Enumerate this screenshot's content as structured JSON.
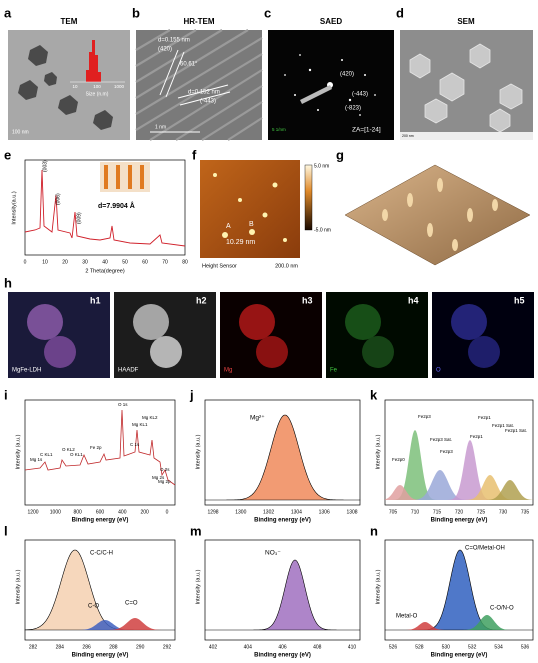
{
  "a": {
    "label": "a",
    "title": "TEM",
    "inset_xlabel": "Size (n.m)",
    "inset_ticks": [
      "10",
      "100",
      "1000"
    ],
    "scale": "100 nm"
  },
  "b": {
    "label": "b",
    "title": "HR-TEM",
    "d1": "d=0.155 nm",
    "p1": "(420)",
    "angle": "60.61°",
    "d2": "d=0.152 nm",
    "p2": "(-443)",
    "scale": "1 nm"
  },
  "c": {
    "label": "c",
    "title": "SAED",
    "p1": "(420)",
    "p2": "(-443)",
    "p3": "(-823)",
    "za": "ZA=[1-24]",
    "scale": "5 1/nm"
  },
  "d": {
    "label": "d",
    "title": "SEM",
    "scale": "200 nm"
  },
  "e": {
    "label": "e",
    "ylabel": "Intensity(a.u.)",
    "xlabel": "2 Theta(degree)",
    "xticks": [
      "0",
      "10",
      "20",
      "30",
      "40",
      "50",
      "60",
      "70",
      "80"
    ],
    "p1": "(003)",
    "p2": "(006)",
    "p3": "(009)",
    "d": "d=7.9904 Å"
  },
  "f": {
    "label": "f",
    "a": "A",
    "b": "B",
    "height": "10.29 nm",
    "sensor": "Height Sensor",
    "scale": "200.0 nm",
    "cmax": "5.0 nm",
    "cmin": "-5.0 nm"
  },
  "g": {
    "label": "g"
  },
  "h": {
    "label": "h",
    "panels": [
      {
        "label": "h1",
        "name": "MgFe-LDH"
      },
      {
        "label": "h2",
        "name": "HAADF"
      },
      {
        "label": "h3",
        "name": "Mg"
      },
      {
        "label": "h4",
        "name": "Fe"
      },
      {
        "label": "h5",
        "name": "O"
      }
    ]
  },
  "i": {
    "label": "i",
    "ylabel": "Intensity (a.u.)",
    "xlabel": "Binding energy (eV)",
    "xticks": [
      "1200",
      "1000",
      "800",
      "600",
      "400",
      "200",
      "0"
    ],
    "peaks": [
      "O 1s",
      "Mg KL1",
      "Mg KL2",
      "C 1s",
      "Fe 2p",
      "O KL1",
      "O KL2",
      "C KL1",
      "Mg 1s",
      "O 2s",
      "Mg 2s",
      "Mg 2p"
    ]
  },
  "j": {
    "label": "j",
    "ylabel": "Intensity (a.u.)",
    "xlabel": "Binding energy (eV)",
    "xticks": [
      "1298",
      "1300",
      "1302",
      "1304",
      "1306",
      "1308"
    ],
    "peak": "Mg²⁺"
  },
  "k": {
    "label": "k",
    "ylabel": "Intensity (a.u.)",
    "xlabel": "Binding energy (eV)",
    "xticks": [
      "705",
      "710",
      "715",
      "720",
      "725",
      "730",
      "735"
    ],
    "peaks": [
      "Fe2p3",
      "Fe2p3 Sat.",
      "Fe2p3",
      "Fe2p1",
      "Fe2p1",
      "Fe2p1 Sat.",
      "Fe2p1 Sat.",
      "Fe2p0"
    ]
  },
  "l": {
    "label": "l",
    "ylabel": "Intensity (a.u.)",
    "xlabel": "Binding energy (eV)",
    "xticks": [
      "282",
      "284",
      "286",
      "288",
      "290",
      "292"
    ],
    "peaks": [
      "C-C/C-H",
      "C-O",
      "C=O"
    ]
  },
  "m": {
    "label": "m",
    "ylabel": "Intensity (a.u.)",
    "xlabel": "Binding energy (eV)",
    "xticks": [
      "402",
      "404",
      "406",
      "408",
      "410"
    ],
    "peak": "NO₃⁻"
  },
  "n": {
    "label": "n",
    "ylabel": "Intensity (a.u.)",
    "xlabel": "Binding energy (eV)",
    "xticks": [
      "526",
      "528",
      "530",
      "532",
      "534",
      "536"
    ],
    "peaks": [
      "C=O/Metal-OH",
      "Metal-O",
      "C-O/N-O"
    ]
  }
}
